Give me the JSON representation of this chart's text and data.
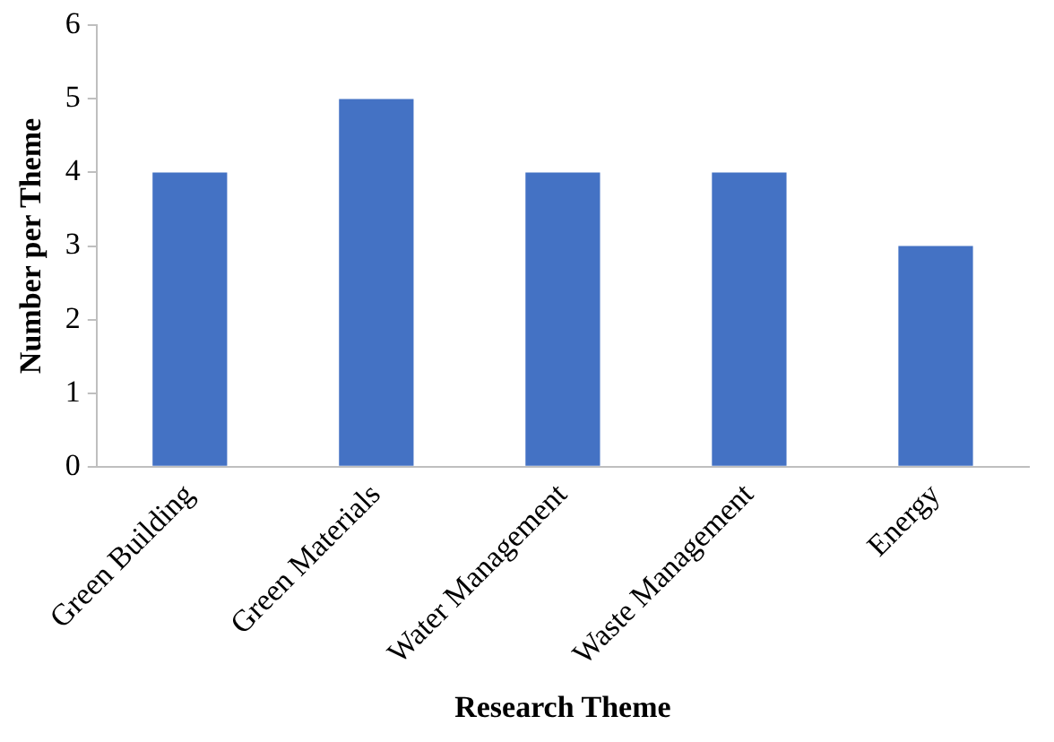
{
  "chart_data": {
    "type": "bar",
    "xlabel": "Research Theme",
    "ylabel": "Number per Theme",
    "categories": [
      "Green Building",
      "Green Materials",
      "Water Management",
      "Waste Management",
      "Energy"
    ],
    "values": [
      4,
      5,
      4,
      4,
      3
    ],
    "color": "#4472c4",
    "ylim": [
      0,
      6
    ],
    "yticks": [
      0,
      1,
      2,
      3,
      4,
      5,
      6
    ],
    "grid": false,
    "legend": false
  }
}
